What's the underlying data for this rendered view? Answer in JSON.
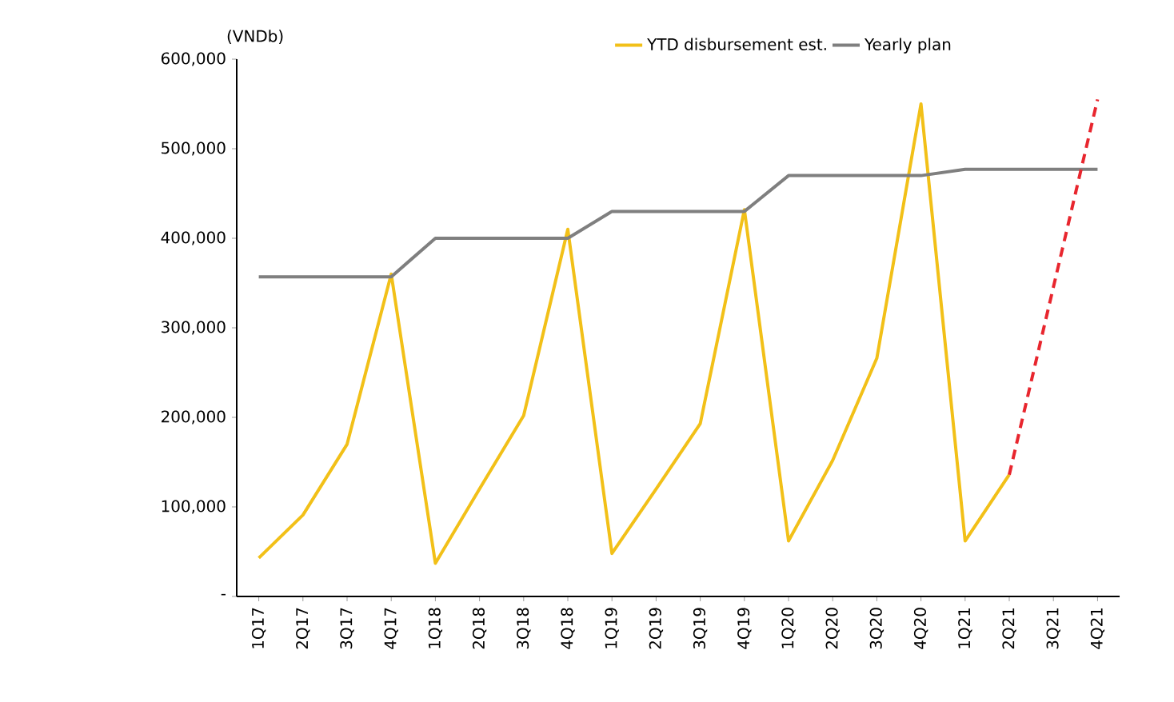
{
  "chart_data": {
    "type": "line",
    "ylabel": "(VNDb)",
    "categories": [
      "1Q17",
      "2Q17",
      "3Q17",
      "4Q17",
      "1Q18",
      "2Q18",
      "3Q18",
      "4Q18",
      "1Q19",
      "2Q19",
      "3Q19",
      "4Q19",
      "1Q20",
      "2Q20",
      "3Q20",
      "4Q20",
      "1Q21",
      "2Q21",
      "3Q21",
      "4Q21"
    ],
    "series": [
      {
        "name": "YTD disbursement est.",
        "color": "#f2c018",
        "values": [
          43000,
          91000,
          170000,
          360000,
          37000,
          120000,
          202000,
          410000,
          48000,
          120000,
          193000,
          432000,
          62000,
          152000,
          266000,
          550000,
          62000,
          136000,
          null,
          null
        ]
      },
      {
        "name": "Yearly plan",
        "color": "#7f7f7f",
        "values": [
          357000,
          357000,
          357000,
          357000,
          400000,
          400000,
          400000,
          400000,
          430000,
          430000,
          430000,
          430000,
          470000,
          470000,
          470000,
          470000,
          477000,
          477000,
          477000,
          477000
        ]
      },
      {
        "color": "#e8262e",
        "line_style": "dashed",
        "values": [
          null,
          null,
          null,
          null,
          null,
          null,
          null,
          null,
          null,
          null,
          null,
          null,
          null,
          null,
          null,
          null,
          null,
          136000,
          null,
          555000
        ]
      }
    ],
    "ylim": [
      0,
      600000
    ],
    "yticks": [
      {
        "value": 0,
        "label": "-"
      },
      {
        "value": 100000,
        "label": "100,000"
      },
      {
        "value": 200000,
        "label": "200,000"
      },
      {
        "value": 300000,
        "label": "300,000"
      },
      {
        "value": 400000,
        "label": "400,000"
      },
      {
        "value": 500000,
        "label": "500,000"
      },
      {
        "value": 600000,
        "label": "600,000"
      }
    ],
    "legend": "top",
    "grid": false,
    "marker": "none"
  }
}
